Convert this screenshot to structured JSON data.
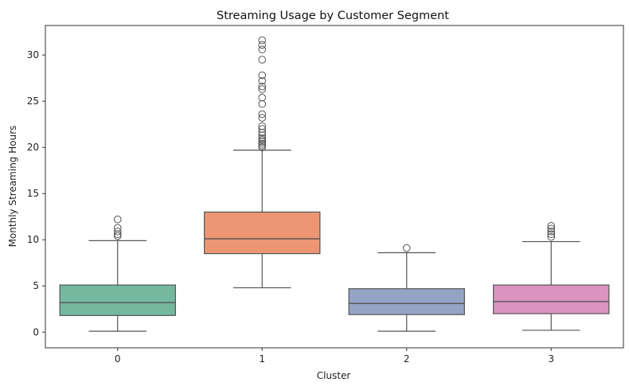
{
  "chart_data": {
    "type": "box",
    "title": "Streaming Usage by Customer Segment",
    "xlabel": "Cluster",
    "ylabel": "Monthly Streaming Hours",
    "categories": [
      "0",
      "1",
      "2",
      "3"
    ],
    "ylim": [
      -1.7,
      33.2
    ],
    "yticks": [
      0,
      5,
      10,
      15,
      20,
      25,
      30
    ],
    "grid": false,
    "boxes": [
      {
        "category": "0",
        "color": "#73b89f",
        "whisker_low": 0.1,
        "q1": 1.8,
        "median": 3.2,
        "q3": 5.1,
        "whisker_high": 9.9,
        "outliers": [
          10.4,
          10.6,
          10.9,
          11.3,
          12.2
        ]
      },
      {
        "category": "1",
        "color": "#ec9674",
        "whisker_low": 4.8,
        "q1": 8.5,
        "median": 10.1,
        "q3": 13.0,
        "whisker_high": 19.7,
        "outliers": [
          20.0,
          20.2,
          20.4,
          20.6,
          20.8,
          21.0,
          21.3,
          21.6,
          22.0,
          22.3,
          23.2,
          23.6,
          24.7,
          25.4,
          26.3,
          26.6,
          27.2,
          27.8,
          29.5,
          30.6,
          31.1,
          31.6
        ]
      },
      {
        "category": "2",
        "color": "#95a3c5",
        "whisker_low": 0.1,
        "q1": 1.9,
        "median": 3.1,
        "q3": 4.7,
        "whisker_high": 8.6,
        "outliers": [
          9.1
        ]
      },
      {
        "category": "3",
        "color": "#db93c0",
        "whisker_low": 0.2,
        "q1": 2.0,
        "median": 3.3,
        "q3": 5.1,
        "whisker_high": 9.8,
        "outliers": [
          10.3,
          10.6,
          10.9,
          11.2,
          11.5
        ]
      }
    ]
  }
}
